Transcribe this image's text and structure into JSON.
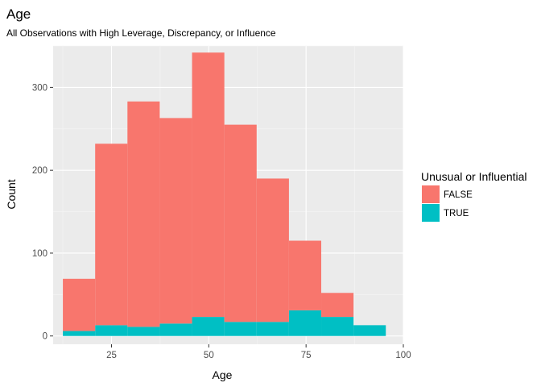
{
  "chart_data": {
    "type": "bar",
    "stacked": true,
    "title": "Age",
    "subtitle": "All Observations with High Leverage, Discrepancy, or Influence",
    "xlabel": "Age",
    "ylabel": "Count",
    "xlim": [
      10,
      100
    ],
    "ylim": [
      -10,
      350
    ],
    "x_ticks": [
      25,
      50,
      75,
      100
    ],
    "y_ticks": [
      0,
      100,
      200,
      300
    ],
    "grid": true,
    "panel_background": "#ebebeb",
    "bins": [
      {
        "x0": 12.5,
        "x1": 20.8
      },
      {
        "x0": 20.8,
        "x1": 29.1
      },
      {
        "x0": 29.1,
        "x1": 37.4
      },
      {
        "x0": 37.4,
        "x1": 45.7
      },
      {
        "x0": 45.7,
        "x1": 54.0
      },
      {
        "x0": 54.0,
        "x1": 62.3
      },
      {
        "x0": 62.3,
        "x1": 70.6
      },
      {
        "x0": 70.6,
        "x1": 78.9
      },
      {
        "x0": 78.9,
        "x1": 87.2
      },
      {
        "x0": 87.2,
        "x1": 95.5
      }
    ],
    "series": [
      {
        "name": "TRUE",
        "color": "#00bfc4",
        "values": [
          6,
          13,
          11,
          15,
          23,
          17,
          17,
          31,
          23,
          13
        ]
      },
      {
        "name": "FALSE",
        "color": "#f8766d",
        "values": [
          63,
          219,
          272,
          248,
          319,
          238,
          173,
          84,
          29,
          0
        ]
      }
    ],
    "legend": {
      "title": "Unusual or Influential",
      "position": "right",
      "entries": [
        {
          "label": "FALSE",
          "color": "#f8766d"
        },
        {
          "label": "TRUE",
          "color": "#00bfc4"
        }
      ]
    }
  }
}
